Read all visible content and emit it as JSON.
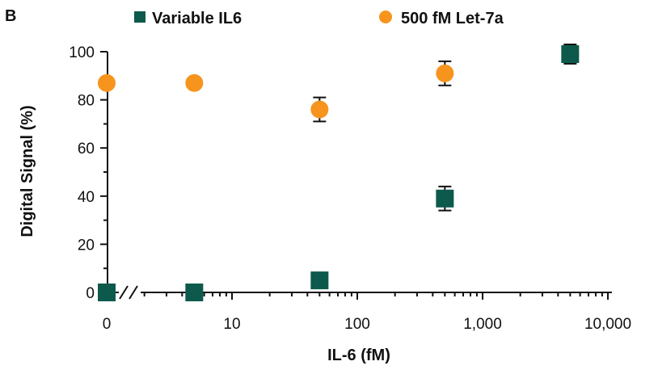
{
  "chart_data": {
    "type": "scatter",
    "panel_label": "B",
    "xlabel": "IL-6 (fM)",
    "ylabel": "Digital Signal (%)",
    "x_scale": "log with broken zero",
    "ylim": [
      0,
      100
    ],
    "y_ticks": [
      0,
      20,
      40,
      60,
      80,
      100
    ],
    "x_ticks": [
      {
        "value": 0,
        "label": "0"
      },
      {
        "value": 10,
        "label": "10"
      },
      {
        "value": 100,
        "label": "100"
      },
      {
        "value": 1000,
        "label": "1,000"
      },
      {
        "value": 10000,
        "label": "10,000"
      }
    ],
    "legend_placement": "top",
    "grid": false,
    "series": [
      {
        "name": "Variable IL6",
        "marker": "square",
        "color": "#0d5a4c",
        "points": [
          {
            "x": 0,
            "y": 0
          },
          {
            "x": 5,
            "y": 0
          },
          {
            "x": 50,
            "y": 5
          },
          {
            "x": 500,
            "y": 39,
            "err": 5
          },
          {
            "x": 5000,
            "y": 99,
            "err": 4
          }
        ]
      },
      {
        "name": "500 fM Let-7a",
        "marker": "circle",
        "color": "#f7941d",
        "points": [
          {
            "x": 0,
            "y": 87
          },
          {
            "x": 5,
            "y": 87
          },
          {
            "x": 50,
            "y": 76,
            "err": 5
          },
          {
            "x": 500,
            "y": 91,
            "err": 5
          },
          {
            "x": 5000,
            "y": 99,
            "err": 3
          }
        ]
      }
    ]
  }
}
